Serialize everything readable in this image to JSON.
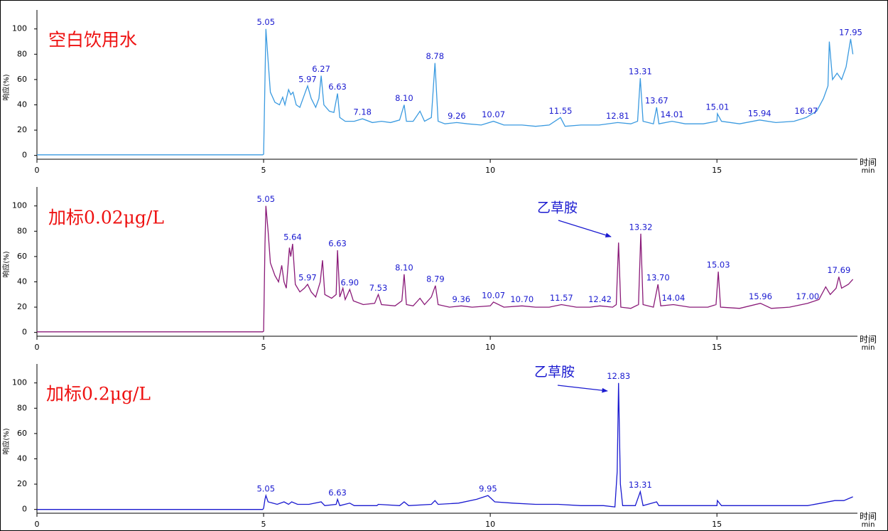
{
  "chart_data": [
    {
      "type": "line",
      "title": "空白饮用水",
      "color": "#3a9ae0",
      "xlim": [
        0,
        18.1
      ],
      "ylim": [
        -3,
        115
      ],
      "xticks": [
        0,
        5,
        10,
        15
      ],
      "yticks": [
        0,
        20,
        40,
        60,
        80,
        100
      ],
      "xlabel": "时间",
      "xunit": "min",
      "ylabel": "响应(%)",
      "x": [
        0,
        4.98,
        5.0,
        5.03,
        5.05,
        5.1,
        5.15,
        5.25,
        5.35,
        5.42,
        5.47,
        5.55,
        5.6,
        5.65,
        5.72,
        5.8,
        5.9,
        5.97,
        6.05,
        6.15,
        6.22,
        6.27,
        6.33,
        6.45,
        6.55,
        6.63,
        6.68,
        6.8,
        7.0,
        7.18,
        7.4,
        7.6,
        7.8,
        8.0,
        8.1,
        8.15,
        8.3,
        8.45,
        8.55,
        8.7,
        8.78,
        8.85,
        9.0,
        9.26,
        9.5,
        9.8,
        10.07,
        10.3,
        10.7,
        11.0,
        11.3,
        11.55,
        11.65,
        12.0,
        12.4,
        12.81,
        13.1,
        13.25,
        13.31,
        13.37,
        13.6,
        13.67,
        13.72,
        14.01,
        14.3,
        14.7,
        15.0,
        15.01,
        15.1,
        15.5,
        15.94,
        16.3,
        16.7,
        16.97,
        17.2,
        17.35,
        17.45,
        17.48,
        17.55,
        17.65,
        17.75,
        17.85,
        17.95,
        18.0
      ],
      "values": [
        0.5,
        0.5,
        1,
        60,
        100,
        75,
        50,
        42,
        40,
        46,
        40,
        52,
        48,
        50,
        40,
        38,
        48,
        55,
        45,
        38,
        45,
        63,
        40,
        35,
        34,
        49,
        30,
        27,
        27,
        29,
        26,
        27,
        26,
        28,
        40,
        27,
        27,
        35,
        27,
        30,
        73,
        27,
        25,
        26,
        25,
        24,
        27,
        24,
        24,
        23,
        24,
        30,
        23,
        24,
        24,
        26,
        25,
        27,
        61,
        27,
        25,
        38,
        25,
        27,
        25,
        25,
        27,
        33,
        27,
        25,
        28,
        26,
        27,
        30,
        35,
        45,
        55,
        90,
        60,
        65,
        60,
        70,
        92,
        80
      ],
      "peaks": {
        "x": [
          5.05,
          5.97,
          6.27,
          6.63,
          7.18,
          8.1,
          8.78,
          9.26,
          10.07,
          11.55,
          12.81,
          13.31,
          13.67,
          14.01,
          15.01,
          15.94,
          16.97,
          17.95
        ],
        "labels": [
          "5.05",
          "5.97",
          "6.27",
          "6.63",
          "7.18",
          "8.10",
          "8.78",
          "9.26",
          "10.07",
          "11.55",
          "12.81",
          "13.31",
          "13.67",
          "14.01",
          "15.01",
          "15.94",
          "16.97",
          "17.95"
        ],
        "y": [
          100,
          55,
          63,
          49,
          29,
          40,
          73,
          26,
          27,
          30,
          26,
          61,
          38,
          27,
          33,
          28,
          30,
          92
        ]
      }
    },
    {
      "type": "line",
      "title": "加标0.02μg/L",
      "color": "#8a1a78",
      "annotation": "乙草胺",
      "xlim": [
        0,
        18.1
      ],
      "ylim": [
        -3,
        115
      ],
      "xticks": [
        0,
        5,
        10,
        15
      ],
      "yticks": [
        0,
        20,
        40,
        60,
        80,
        100
      ],
      "xlabel": "时间",
      "xunit": "min",
      "ylabel": "响应(%)",
      "x": [
        0,
        4.98,
        5.0,
        5.03,
        5.05,
        5.1,
        5.15,
        5.25,
        5.33,
        5.4,
        5.45,
        5.5,
        5.57,
        5.6,
        5.64,
        5.7,
        5.8,
        5.9,
        5.97,
        6.05,
        6.15,
        6.25,
        6.3,
        6.35,
        6.5,
        6.6,
        6.63,
        6.68,
        6.75,
        6.8,
        6.9,
        6.98,
        7.2,
        7.45,
        7.53,
        7.6,
        7.9,
        8.05,
        8.1,
        8.15,
        8.3,
        8.45,
        8.55,
        8.7,
        8.79,
        8.85,
        9.1,
        9.36,
        9.6,
        10.0,
        10.07,
        10.3,
        10.7,
        11.0,
        11.3,
        11.57,
        11.9,
        12.2,
        12.42,
        12.7,
        12.78,
        12.83,
        12.88,
        13.1,
        13.27,
        13.32,
        13.37,
        13.6,
        13.7,
        13.76,
        14.04,
        14.4,
        14.8,
        14.98,
        15.03,
        15.08,
        15.5,
        15.96,
        16.2,
        16.6,
        17.0,
        17.25,
        17.4,
        17.5,
        17.63,
        17.69,
        17.75,
        17.9,
        18.0
      ],
      "values": [
        0.5,
        0.5,
        1,
        70,
        100,
        80,
        55,
        45,
        40,
        53,
        40,
        35,
        67,
        60,
        70,
        38,
        32,
        35,
        38,
        32,
        28,
        40,
        57,
        30,
        27,
        30,
        65,
        28,
        35,
        26,
        34,
        25,
        22,
        23,
        30,
        22,
        21,
        25,
        46,
        22,
        21,
        27,
        22,
        28,
        37,
        22,
        20,
        21,
        20,
        21,
        24,
        20,
        21,
        20,
        20,
        22,
        20,
        20,
        21,
        20,
        22,
        71,
        20,
        19,
        22,
        78,
        22,
        20,
        38,
        21,
        22,
        20,
        20,
        22,
        48,
        20,
        19,
        23,
        19,
        20,
        23,
        26,
        36,
        30,
        35,
        44,
        35,
        38,
        42
      ],
      "peaks": {
        "x": [
          5.05,
          5.64,
          5.97,
          6.63,
          6.9,
          7.53,
          8.1,
          8.79,
          9.36,
          10.07,
          10.7,
          11.57,
          12.42,
          13.32,
          13.7,
          14.04,
          15.03,
          15.96,
          17.0,
          17.69
        ],
        "labels": [
          "5.05",
          "5.64",
          "5.97",
          "6.63",
          "6.90",
          "7.53",
          "8.10",
          "8.79",
          "9.36",
          "10.07",
          "10.70",
          "11.57",
          "12.42",
          "13.32",
          "13.70",
          "14.04",
          "15.03",
          "15.96",
          "17.00",
          "17.69"
        ],
        "y": [
          100,
          70,
          38,
          65,
          34,
          30,
          46,
          37,
          21,
          24,
          21,
          22,
          21,
          78,
          38,
          22,
          48,
          23,
          23,
          44
        ]
      }
    },
    {
      "type": "line",
      "title": "加标0.2μg/L",
      "color": "#1a1ad0",
      "annotation": "乙草胺",
      "xlim": [
        0,
        18.1
      ],
      "ylim": [
        -3,
        115
      ],
      "xticks": [
        0,
        5,
        10,
        15
      ],
      "yticks": [
        0,
        20,
        40,
        60,
        80,
        100
      ],
      "xlabel": "时间",
      "xunit": "min",
      "ylabel": "响应(%)",
      "x": [
        0,
        4.98,
        5.0,
        5.03,
        5.05,
        5.1,
        5.3,
        5.45,
        5.55,
        5.62,
        5.75,
        6.0,
        6.27,
        6.35,
        6.6,
        6.63,
        6.68,
        6.9,
        7.0,
        7.5,
        7.53,
        8.0,
        8.1,
        8.2,
        8.7,
        8.78,
        8.85,
        9.3,
        9.7,
        9.95,
        10.1,
        10.5,
        11.0,
        11.5,
        12.0,
        12.5,
        12.75,
        12.8,
        12.83,
        12.87,
        12.92,
        13.2,
        13.31,
        13.37,
        13.67,
        13.72,
        14.5,
        15.0,
        15.01,
        15.1,
        16.0,
        16.5,
        17.0,
        17.3,
        17.6,
        17.8,
        18.0
      ],
      "values": [
        0,
        0,
        1,
        8,
        11,
        6,
        4,
        6,
        4,
        6,
        4,
        4,
        6,
        3,
        4,
        8,
        3,
        5,
        3,
        3,
        4,
        3,
        6,
        3,
        4,
        7,
        4,
        5,
        8,
        11,
        6,
        5,
        4,
        4,
        3,
        3,
        2,
        30,
        100,
        20,
        3,
        3,
        14,
        3,
        6,
        3,
        3,
        3,
        7,
        3,
        3,
        3,
        3,
        5,
        7,
        7,
        10
      ],
      "peaks": {
        "x": [
          5.05,
          6.63,
          9.95,
          12.83,
          13.31
        ],
        "labels": [
          "5.05",
          "6.63",
          "9.95",
          "12.83",
          "13.31"
        ],
        "y": [
          11,
          8,
          11,
          100,
          14
        ]
      }
    }
  ]
}
